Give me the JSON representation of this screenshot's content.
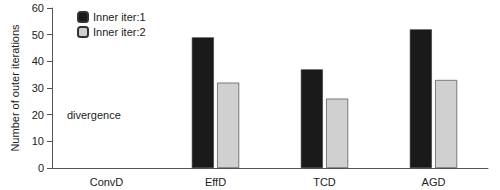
{
  "chart_data": {
    "type": "bar",
    "y_label": "Number of outer iterations",
    "categories": [
      "ConvD",
      "EffD",
      "TCD",
      "AGD"
    ],
    "series": [
      {
        "name": "Inner iter:1",
        "color": "#1a1a1a",
        "values": [
          null,
          49,
          37,
          52
        ]
      },
      {
        "name": "Inner iter:2",
        "color": "#d0d0d0",
        "values": [
          null,
          32,
          26,
          33
        ]
      }
    ],
    "annotations": [
      {
        "text": "divergence",
        "category": "ConvD",
        "y": 20
      }
    ],
    "ylim": [
      0,
      60
    ],
    "yticks": [
      0,
      10,
      20,
      30,
      40,
      50,
      60
    ],
    "grid": false,
    "legend": "upper left"
  }
}
